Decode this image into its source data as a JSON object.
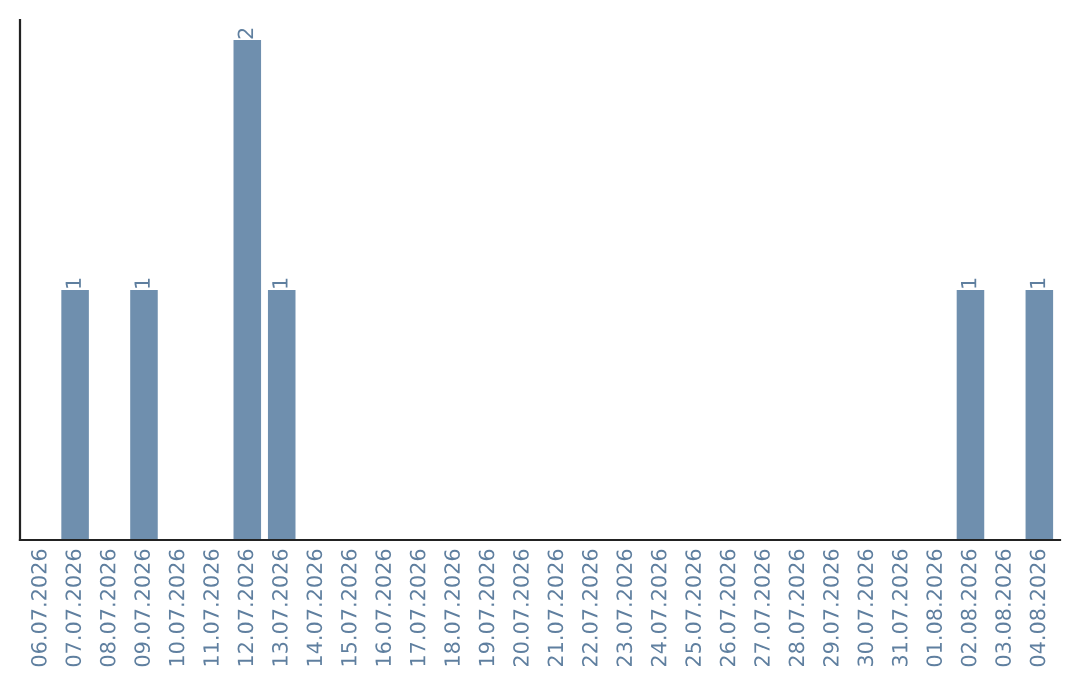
{
  "chart_data": {
    "type": "bar",
    "categories": [
      "06.07.2026",
      "07.07.2026",
      "08.07.2026",
      "09.07.2026",
      "10.07.2026",
      "11.07.2026",
      "12.07.2026",
      "13.07.2026",
      "14.07.2026",
      "15.07.2026",
      "16.07.2026",
      "17.07.2026",
      "18.07.2026",
      "19.07.2026",
      "20.07.2026",
      "21.07.2026",
      "22.07.2026",
      "23.07.2026",
      "24.07.2026",
      "25.07.2026",
      "26.07.2026",
      "27.07.2026",
      "28.07.2026",
      "29.07.2026",
      "30.07.2026",
      "31.07.2026",
      "01.08.2026",
      "02.08.2026",
      "03.08.2026",
      "04.08.2026"
    ],
    "values": [
      0,
      1,
      0,
      1,
      0,
      0,
      2,
      1,
      0,
      0,
      0,
      0,
      0,
      0,
      0,
      0,
      0,
      0,
      0,
      0,
      0,
      0,
      0,
      0,
      0,
      0,
      0,
      1,
      0,
      1
    ],
    "color": "#6f8fae",
    "value_labels": [
      null,
      "1",
      null,
      "1",
      null,
      null,
      "2",
      "1",
      null,
      null,
      null,
      null,
      null,
      null,
      null,
      null,
      null,
      null,
      null,
      null,
      null,
      null,
      null,
      null,
      null,
      null,
      null,
      "1",
      null,
      "1"
    ],
    "tick_labels": "x",
    "grid": false,
    "legend": false
  }
}
